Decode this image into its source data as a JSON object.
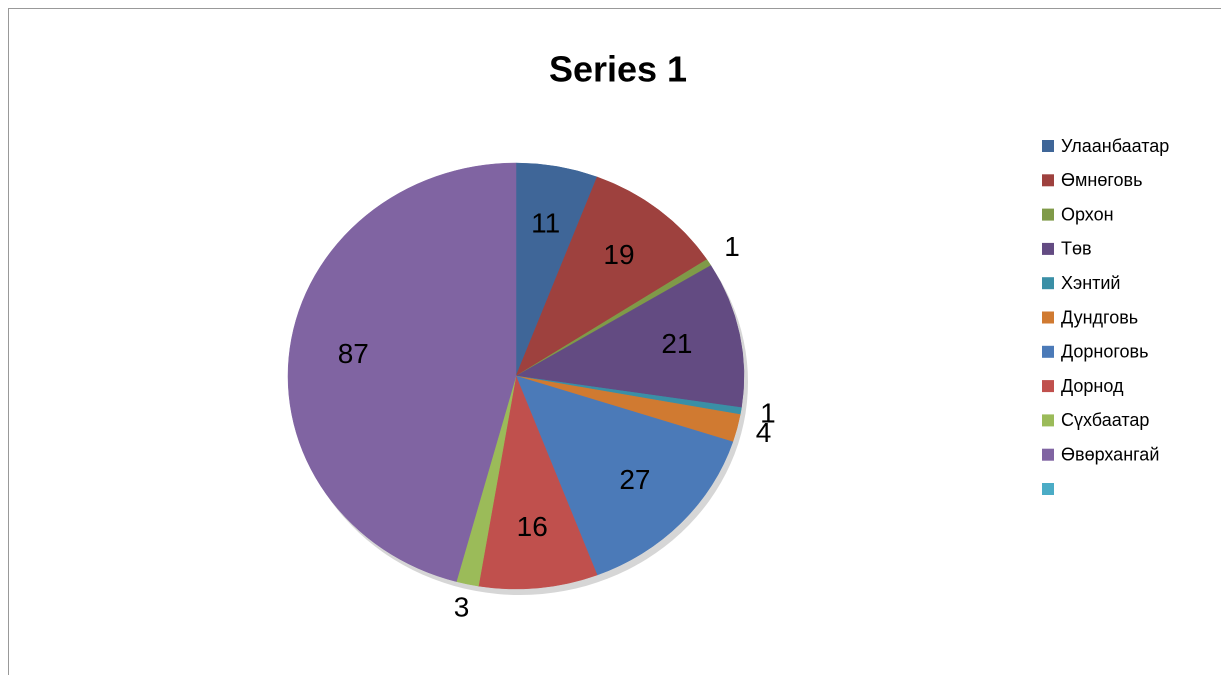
{
  "chart_data": {
    "type": "pie",
    "title": "Series 1",
    "categories": [
      "Улаанбаатар",
      "Өмнөговь",
      "Орхон",
      "Төв",
      "Хэнтий",
      "Дундговь",
      "Дорноговь",
      "Дорнод",
      "Сүхбаатар",
      "Өвөрхангай",
      null
    ],
    "values": [
      11,
      19,
      1,
      21,
      1,
      4,
      27,
      16,
      3,
      87,
      null
    ],
    "colors": [
      "#3f6698",
      "#9e413e",
      "#7f9a48",
      "#634b82",
      "#3a8fa6",
      "#d07a31",
      "#4b7ab8",
      "#c0504d",
      "#9bbb59",
      "#8064a2",
      "#4bacc6"
    ],
    "legend": "right"
  }
}
